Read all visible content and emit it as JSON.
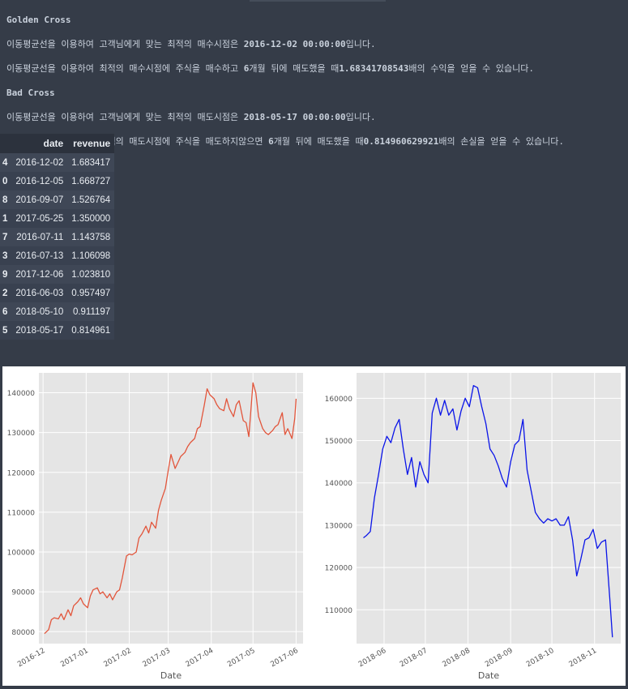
{
  "golden": {
    "heading": "Golden Cross",
    "line1_pre": "이동평균선을 이용하여 고객님에게 맞는 최적의 매수시점은 ",
    "line1_value": "2016-12-02 00:00:00",
    "line1_post": "입니다.",
    "line2_pre": "이동평균선을 이용하여 최적의 매수시점에 주식을 매수하고 ",
    "line2_bold1": "6",
    "line2_mid": "개월 뒤에 매도했을 때",
    "line2_bold2": "1.68341708543",
    "line2_post": "배의 수익을 얻을 수 있습니다."
  },
  "bad": {
    "heading": "Bad Cross",
    "line1_pre": "이동평균선을 이용하여 고객님에게 맞는 최적의 매도시점은 ",
    "line1_value": "2018-05-17 00:00:00",
    "line1_post": "입니다.",
    "line2_pre": "이동평균선을 이용하여 최적의 매도시점에 주식을 매도하지않으면 ",
    "line2_bold1": "6",
    "line2_mid": "개월 뒤에 매도했을 때",
    "line2_bold2": "0.814960629921",
    "line2_post": "배의 손실을 얻을 수 있습니다."
  },
  "table": {
    "headers": [
      "",
      "date",
      "revenue"
    ],
    "rows": [
      {
        "index": "4",
        "date": "2016-12-02",
        "revenue": "1.683417"
      },
      {
        "index": "0",
        "date": "2016-12-05",
        "revenue": "1.668727"
      },
      {
        "index": "8",
        "date": "2016-09-07",
        "revenue": "1.526764"
      },
      {
        "index": "1",
        "date": "2017-05-25",
        "revenue": "1.350000"
      },
      {
        "index": "7",
        "date": "2016-07-11",
        "revenue": "1.143758"
      },
      {
        "index": "3",
        "date": "2016-07-13",
        "revenue": "1.106098"
      },
      {
        "index": "9",
        "date": "2017-12-06",
        "revenue": "1.023810"
      },
      {
        "index": "2",
        "date": "2016-06-03",
        "revenue": "0.957497"
      },
      {
        "index": "6",
        "date": "2018-05-10",
        "revenue": "0.911197"
      },
      {
        "index": "5",
        "date": "2018-05-17",
        "revenue": "0.814961"
      }
    ]
  },
  "chart_data": [
    {
      "type": "line",
      "xlabel": "Date",
      "ylabel": "",
      "color": "#e2553b",
      "xlim": [
        "2016-11-28",
        "2017-06-06"
      ],
      "ylim": [
        77000,
        145000
      ],
      "xticks": [
        "2016-12",
        "2017-01",
        "2017-02",
        "2017-03",
        "2017-04",
        "2017-05",
        "2017-06"
      ],
      "yticks": [
        80000,
        90000,
        100000,
        110000,
        120000,
        130000,
        140000
      ],
      "grid": true,
      "series": [
        {
          "x": [
            "2016-12-02",
            "2016-12-05",
            "2016-12-07",
            "2016-12-09",
            "2016-12-12",
            "2016-12-14",
            "2016-12-16",
            "2016-12-19",
            "2016-12-21",
            "2016-12-23",
            "2016-12-26",
            "2016-12-28",
            "2016-12-30",
            "2017-01-02",
            "2017-01-04",
            "2017-01-06",
            "2017-01-09",
            "2017-01-11",
            "2017-01-13",
            "2017-01-16",
            "2017-01-18",
            "2017-01-20",
            "2017-01-23",
            "2017-01-25",
            "2017-01-27",
            "2017-01-30",
            "2017-02-01",
            "2017-02-03",
            "2017-02-06",
            "2017-02-08",
            "2017-02-10",
            "2017-02-13",
            "2017-02-15",
            "2017-02-17",
            "2017-02-20",
            "2017-02-22",
            "2017-02-24",
            "2017-02-27",
            "2017-03-01",
            "2017-03-03",
            "2017-03-06",
            "2017-03-08",
            "2017-03-10",
            "2017-03-13",
            "2017-03-15",
            "2017-03-17",
            "2017-03-20",
            "2017-03-22",
            "2017-03-24",
            "2017-03-27",
            "2017-03-29",
            "2017-03-31",
            "2017-04-03",
            "2017-04-05",
            "2017-04-07",
            "2017-04-10",
            "2017-04-12",
            "2017-04-14",
            "2017-04-17",
            "2017-04-19",
            "2017-04-21",
            "2017-04-24",
            "2017-04-26",
            "2017-04-28",
            "2017-05-01",
            "2017-05-03",
            "2017-05-05",
            "2017-05-08",
            "2017-05-10",
            "2017-05-12",
            "2017-05-15",
            "2017-05-17",
            "2017-05-19",
            "2017-05-22",
            "2017-05-24",
            "2017-05-26",
            "2017-05-29",
            "2017-05-31",
            "2017-06-01"
          ],
          "y": [
            79500,
            80500,
            83000,
            83500,
            83200,
            84500,
            83000,
            85500,
            84000,
            86500,
            87500,
            88500,
            87000,
            86000,
            89000,
            90500,
            91000,
            89500,
            90000,
            88500,
            89500,
            88000,
            90000,
            90500,
            93500,
            99000,
            99500,
            99300,
            100000,
            103500,
            104500,
            106500,
            104800,
            107500,
            106000,
            110500,
            113000,
            116000,
            120500,
            124500,
            121000,
            122500,
            124000,
            125000,
            126500,
            127500,
            128500,
            131000,
            131500,
            137000,
            141000,
            139500,
            138500,
            137000,
            136000,
            135500,
            138500,
            136000,
            134000,
            137000,
            138000,
            133000,
            132500,
            129000,
            142500,
            140000,
            134000,
            131000,
            130000,
            129500,
            130500,
            131500,
            132000,
            135000,
            129500,
            131000,
            128500,
            133500,
            138500
          ]
        }
      ]
    },
    {
      "type": "line",
      "xlabel": "Date",
      "ylabel": "",
      "color": "#0a14e8",
      "xlim": [
        "2018-05-12",
        "2018-11-20"
      ],
      "ylim": [
        102000,
        166000
      ],
      "xticks": [
        "2018-06",
        "2018-07",
        "2018-08",
        "2018-09",
        "2018-10",
        "2018-11"
      ],
      "yticks": [
        110000,
        120000,
        130000,
        140000,
        150000,
        160000
      ],
      "grid": true,
      "series": [
        {
          "x": [
            "2018-05-17",
            "2018-05-19",
            "2018-05-22",
            "2018-05-25",
            "2018-05-28",
            "2018-05-31",
            "2018-06-03",
            "2018-06-06",
            "2018-06-09",
            "2018-06-12",
            "2018-06-15",
            "2018-06-18",
            "2018-06-21",
            "2018-06-24",
            "2018-06-27",
            "2018-06-30",
            "2018-07-03",
            "2018-07-06",
            "2018-07-09",
            "2018-07-12",
            "2018-07-15",
            "2018-07-18",
            "2018-07-21",
            "2018-07-24",
            "2018-07-27",
            "2018-07-30",
            "2018-08-02",
            "2018-08-05",
            "2018-08-08",
            "2018-08-11",
            "2018-08-14",
            "2018-08-17",
            "2018-08-20",
            "2018-08-23",
            "2018-08-26",
            "2018-08-29",
            "2018-09-01",
            "2018-09-04",
            "2018-09-07",
            "2018-09-10",
            "2018-09-13",
            "2018-09-16",
            "2018-09-19",
            "2018-09-22",
            "2018-09-25",
            "2018-09-28",
            "2018-10-01",
            "2018-10-04",
            "2018-10-07",
            "2018-10-10",
            "2018-10-13",
            "2018-10-16",
            "2018-10-19",
            "2018-10-22",
            "2018-10-25",
            "2018-10-28",
            "2018-10-31",
            "2018-11-03",
            "2018-11-06",
            "2018-11-09",
            "2018-11-12",
            "2018-11-14"
          ],
          "y": [
            127000,
            127500,
            128500,
            136500,
            142000,
            148000,
            151000,
            149500,
            153000,
            155000,
            148000,
            142000,
            146000,
            139000,
            145000,
            142000,
            140000,
            156500,
            160000,
            156000,
            159500,
            156000,
            157500,
            152500,
            157000,
            160000,
            158000,
            163000,
            162500,
            158000,
            154000,
            148000,
            146500,
            144000,
            141000,
            139000,
            145000,
            149000,
            150000,
            155000,
            143000,
            138000,
            133000,
            131500,
            130500,
            131500,
            131000,
            131500,
            130000,
            130000,
            132000,
            126500,
            118000,
            122000,
            126500,
            127000,
            129000,
            124500,
            126000,
            126500,
            113000,
            103500
          ]
        }
      ]
    }
  ]
}
